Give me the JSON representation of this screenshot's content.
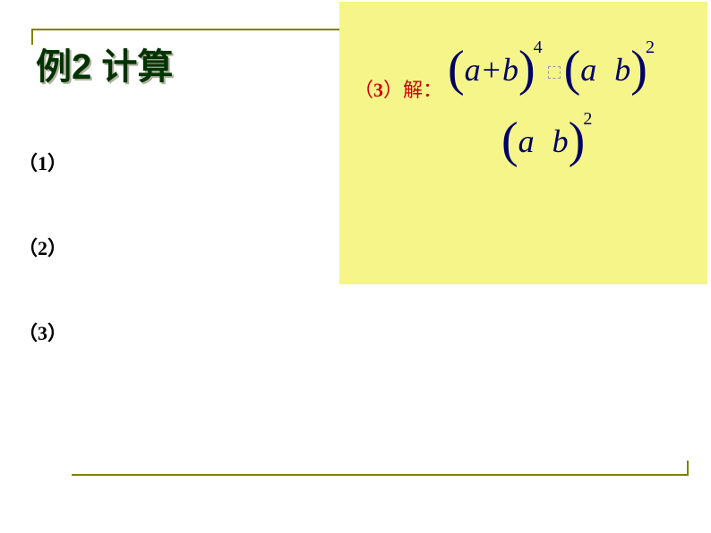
{
  "title": "例2  计算",
  "items": {
    "item1": "（1）",
    "item2": "（2）",
    "item3": "（3）"
  },
  "solution": {
    "label_prefix": "（",
    "label_num": "3",
    "label_suffix": "）解：",
    "formula1": {
      "part1_open": "(",
      "part1_a": "a",
      "part1_plus": "+",
      "part1_b": "b",
      "part1_close": ")",
      "part1_exp": "4",
      "part2_open": "(",
      "part2_a": "a",
      "part2_b": "b",
      "part2_close": ")",
      "part2_exp": "2"
    },
    "formula2": {
      "open": "(",
      "a": "a",
      "b": "b",
      "close": ")",
      "exp": "2"
    }
  },
  "colors": {
    "title_color": "#003300",
    "label_color": "#cc0000",
    "math_color": "#000066",
    "yellow_bg": "#f5f589",
    "line_color": "#808000"
  }
}
